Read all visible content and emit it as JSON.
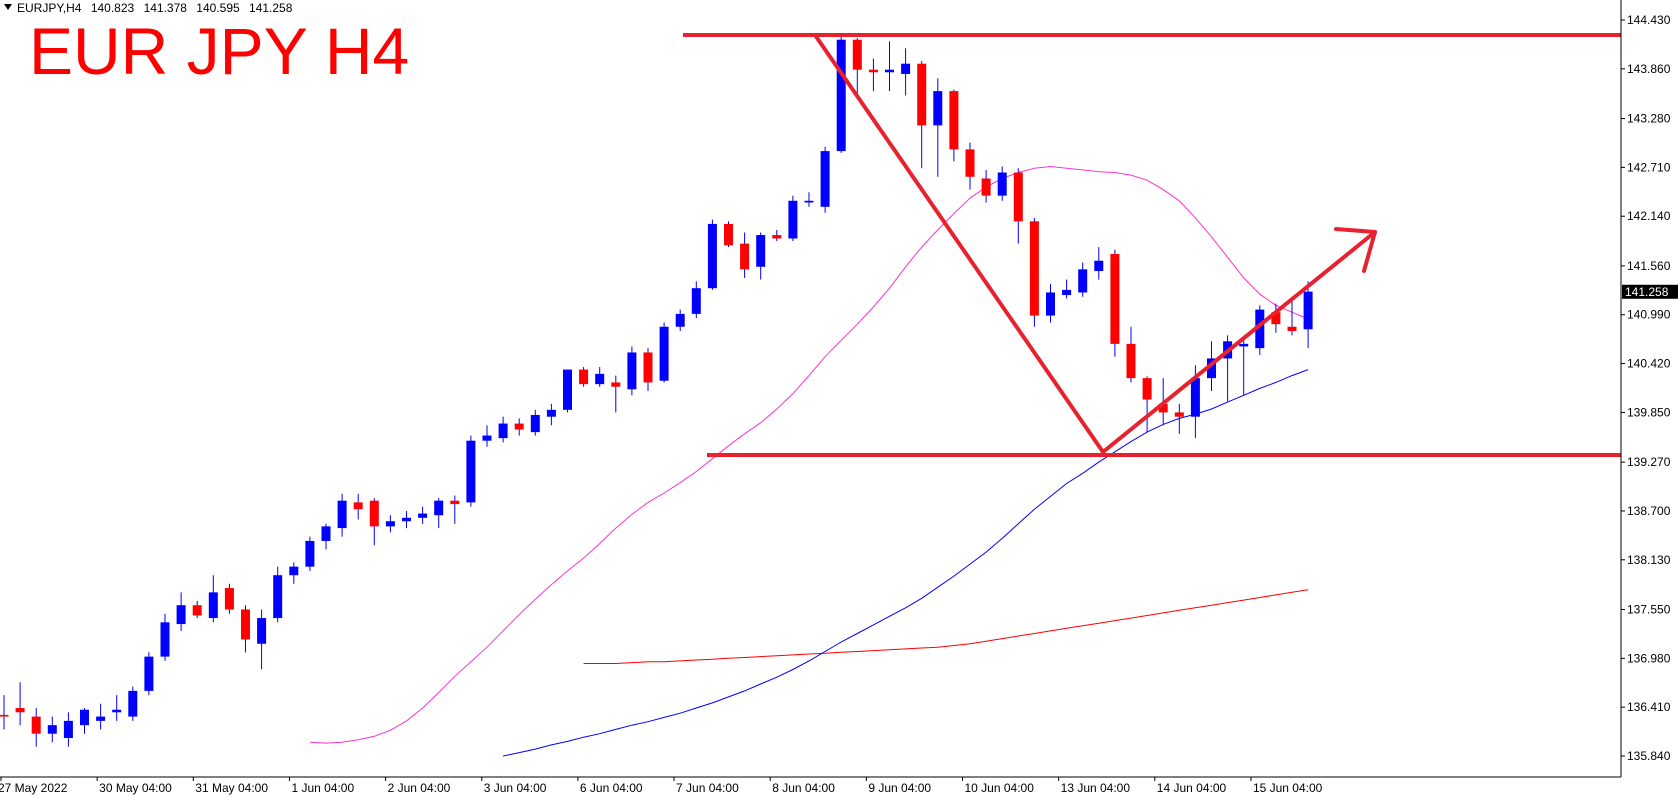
{
  "header": {
    "symbol": "EURJPY,H4",
    "open": "140.823",
    "high": "141.378",
    "low": "140.595",
    "close": "141.258",
    "annotation_title": "EUR JPY H4"
  },
  "colors": {
    "background": "#ffffff",
    "bull_candle": "#0000ff",
    "bear_candle": "#ff0000",
    "wick": "#0000ff",
    "ma_pink": "#ff33cc",
    "ma_blue": "#0000ff",
    "ma_red": "#ff0000",
    "annotation": "#e8212f",
    "axis": "#000000",
    "price_badge": "#000000"
  },
  "chart_data": {
    "type": "candlestick",
    "y_ticks": [
      "144.430",
      "143.860",
      "143.280",
      "142.710",
      "142.140",
      "141.560",
      "140.990",
      "140.420",
      "139.850",
      "139.270",
      "138.700",
      "138.130",
      "137.550",
      "136.980",
      "136.410",
      "135.840"
    ],
    "ylim": [
      135.78,
      144.6
    ],
    "x_ticks": [
      "27 May 2022",
      "30 May 04:00",
      "31 May 04:00",
      "1 Jun 04:00",
      "2 Jun 04:00",
      "3 Jun 04:00",
      "6 Jun 04:00",
      "7 Jun 04:00",
      "8 Jun 04:00",
      "9 Jun 04:00",
      "10 Jun 04:00",
      "13 Jun 04:00",
      "14 Jun 04:00",
      "15 Jun 04:00"
    ],
    "current_price": "141.258",
    "candles": [
      {
        "o": 136.32,
        "h": 136.55,
        "l": 136.15,
        "c": 136.3
      },
      {
        "o": 136.4,
        "h": 136.7,
        "l": 136.2,
        "c": 136.35
      },
      {
        "o": 136.3,
        "h": 136.4,
        "l": 135.95,
        "c": 136.1
      },
      {
        "o": 136.1,
        "h": 136.3,
        "l": 136.0,
        "c": 136.2
      },
      {
        "o": 136.05,
        "h": 136.35,
        "l": 135.95,
        "c": 136.25
      },
      {
        "o": 136.2,
        "h": 136.4,
        "l": 136.1,
        "c": 136.38
      },
      {
        "o": 136.25,
        "h": 136.45,
        "l": 136.15,
        "c": 136.3
      },
      {
        "o": 136.35,
        "h": 136.55,
        "l": 136.25,
        "c": 136.38
      },
      {
        "o": 136.3,
        "h": 136.65,
        "l": 136.25,
        "c": 136.6
      },
      {
        "o": 136.6,
        "h": 137.05,
        "l": 136.55,
        "c": 137.0
      },
      {
        "o": 137.0,
        "h": 137.5,
        "l": 136.95,
        "c": 137.4
      },
      {
        "o": 137.38,
        "h": 137.75,
        "l": 137.3,
        "c": 137.6
      },
      {
        "o": 137.6,
        "h": 137.65,
        "l": 137.45,
        "c": 137.48
      },
      {
        "o": 137.45,
        "h": 137.95,
        "l": 137.4,
        "c": 137.75
      },
      {
        "o": 137.8,
        "h": 137.85,
        "l": 137.5,
        "c": 137.55
      },
      {
        "o": 137.55,
        "h": 137.6,
        "l": 137.05,
        "c": 137.2
      },
      {
        "o": 137.15,
        "h": 137.55,
        "l": 136.85,
        "c": 137.45
      },
      {
        "o": 137.45,
        "h": 138.05,
        "l": 137.4,
        "c": 137.95
      },
      {
        "o": 137.95,
        "h": 138.1,
        "l": 137.85,
        "c": 138.05
      },
      {
        "o": 138.05,
        "h": 138.4,
        "l": 138.0,
        "c": 138.35
      },
      {
        "o": 138.35,
        "h": 138.55,
        "l": 138.25,
        "c": 138.52
      },
      {
        "o": 138.5,
        "h": 138.9,
        "l": 138.4,
        "c": 138.82
      },
      {
        "o": 138.8,
        "h": 138.9,
        "l": 138.6,
        "c": 138.72
      },
      {
        "o": 138.82,
        "h": 138.85,
        "l": 138.3,
        "c": 138.52
      },
      {
        "o": 138.52,
        "h": 138.65,
        "l": 138.45,
        "c": 138.58
      },
      {
        "o": 138.58,
        "h": 138.7,
        "l": 138.5,
        "c": 138.62
      },
      {
        "o": 138.62,
        "h": 138.75,
        "l": 138.55,
        "c": 138.67
      },
      {
        "o": 138.65,
        "h": 138.85,
        "l": 138.5,
        "c": 138.82
      },
      {
        "o": 138.82,
        "h": 138.88,
        "l": 138.55,
        "c": 138.78
      },
      {
        "o": 138.8,
        "h": 139.58,
        "l": 138.75,
        "c": 139.52
      },
      {
        "o": 139.52,
        "h": 139.7,
        "l": 139.45,
        "c": 139.58
      },
      {
        "o": 139.55,
        "h": 139.8,
        "l": 139.5,
        "c": 139.72
      },
      {
        "o": 139.72,
        "h": 139.78,
        "l": 139.58,
        "c": 139.65
      },
      {
        "o": 139.62,
        "h": 139.88,
        "l": 139.58,
        "c": 139.82
      },
      {
        "o": 139.8,
        "h": 139.95,
        "l": 139.7,
        "c": 139.88
      },
      {
        "o": 139.88,
        "h": 140.35,
        "l": 139.85,
        "c": 140.35
      },
      {
        "o": 140.35,
        "h": 140.38,
        "l": 140.15,
        "c": 140.18
      },
      {
        "o": 140.18,
        "h": 140.38,
        "l": 140.15,
        "c": 140.3
      },
      {
        "o": 140.2,
        "h": 140.28,
        "l": 139.85,
        "c": 140.15
      },
      {
        "o": 140.12,
        "h": 140.62,
        "l": 140.05,
        "c": 140.55
      },
      {
        "o": 140.55,
        "h": 140.6,
        "l": 140.1,
        "c": 140.2
      },
      {
        "o": 140.22,
        "h": 140.9,
        "l": 140.2,
        "c": 140.85
      },
      {
        "o": 140.85,
        "h": 141.05,
        "l": 140.8,
        "c": 141.0
      },
      {
        "o": 141.0,
        "h": 141.38,
        "l": 140.95,
        "c": 141.3
      },
      {
        "o": 141.3,
        "h": 142.1,
        "l": 141.28,
        "c": 142.05
      },
      {
        "o": 142.05,
        "h": 142.08,
        "l": 141.78,
        "c": 141.8
      },
      {
        "o": 141.82,
        "h": 141.95,
        "l": 141.42,
        "c": 141.52
      },
      {
        "o": 141.55,
        "h": 141.95,
        "l": 141.4,
        "c": 141.92
      },
      {
        "o": 141.92,
        "h": 141.98,
        "l": 141.85,
        "c": 141.88
      },
      {
        "o": 141.88,
        "h": 142.38,
        "l": 141.85,
        "c": 142.32
      },
      {
        "o": 142.3,
        "h": 142.42,
        "l": 142.25,
        "c": 142.32
      },
      {
        "o": 142.25,
        "h": 142.95,
        "l": 142.18,
        "c": 142.9
      },
      {
        "o": 142.9,
        "h": 144.25,
        "l": 142.88,
        "c": 144.2
      },
      {
        "o": 144.2,
        "h": 144.22,
        "l": 143.55,
        "c": 143.85
      },
      {
        "o": 143.85,
        "h": 143.98,
        "l": 143.6,
        "c": 143.82
      },
      {
        "o": 143.82,
        "h": 144.18,
        "l": 143.6,
        "c": 143.85
      },
      {
        "o": 143.8,
        "h": 144.1,
        "l": 143.55,
        "c": 143.92
      },
      {
        "o": 143.92,
        "h": 143.95,
        "l": 142.7,
        "c": 143.2
      },
      {
        "o": 143.2,
        "h": 143.75,
        "l": 142.6,
        "c": 143.6
      },
      {
        "o": 143.6,
        "h": 143.62,
        "l": 142.78,
        "c": 142.92
      },
      {
        "o": 142.92,
        "h": 143.0,
        "l": 142.45,
        "c": 142.6
      },
      {
        "o": 142.58,
        "h": 142.68,
        "l": 142.3,
        "c": 142.38
      },
      {
        "o": 142.38,
        "h": 142.72,
        "l": 142.32,
        "c": 142.65
      },
      {
        "o": 142.65,
        "h": 142.7,
        "l": 141.82,
        "c": 142.08
      },
      {
        "o": 142.08,
        "h": 142.12,
        "l": 140.85,
        "c": 140.98
      },
      {
        "o": 140.98,
        "h": 141.35,
        "l": 140.9,
        "c": 141.25
      },
      {
        "o": 141.22,
        "h": 141.4,
        "l": 141.18,
        "c": 141.28
      },
      {
        "o": 141.25,
        "h": 141.6,
        "l": 141.2,
        "c": 141.52
      },
      {
        "o": 141.5,
        "h": 141.78,
        "l": 141.4,
        "c": 141.62
      },
      {
        "o": 141.7,
        "h": 141.75,
        "l": 140.5,
        "c": 140.65
      },
      {
        "o": 140.65,
        "h": 140.85,
        "l": 140.2,
        "c": 140.25
      },
      {
        "o": 140.25,
        "h": 140.27,
        "l": 139.62,
        "c": 140.0
      },
      {
        "o": 139.95,
        "h": 140.25,
        "l": 139.7,
        "c": 139.85
      },
      {
        "o": 139.85,
        "h": 139.95,
        "l": 139.6,
        "c": 139.8
      },
      {
        "o": 139.8,
        "h": 140.4,
        "l": 139.55,
        "c": 140.25
      },
      {
        "o": 140.25,
        "h": 140.68,
        "l": 140.1,
        "c": 140.48
      },
      {
        "o": 140.48,
        "h": 140.75,
        "l": 139.98,
        "c": 140.68
      },
      {
        "o": 140.62,
        "h": 140.7,
        "l": 140.05,
        "c": 140.65
      },
      {
        "o": 140.6,
        "h": 141.1,
        "l": 140.52,
        "c": 141.05
      },
      {
        "o": 141.02,
        "h": 141.12,
        "l": 140.78,
        "c": 140.88
      },
      {
        "o": 140.85,
        "h": 141.18,
        "l": 140.75,
        "c": 140.8
      },
      {
        "o": 140.82,
        "h": 141.38,
        "l": 140.6,
        "c": 141.26
      }
    ],
    "ma_pink": [
      136.0,
      135.99,
      136.0,
      136.03,
      136.07,
      136.14,
      136.25,
      136.4,
      136.58,
      136.77,
      136.94,
      137.11,
      137.3,
      137.49,
      137.67,
      137.84,
      138.0,
      138.15,
      138.32,
      138.5,
      138.66,
      138.8,
      138.91,
      139.03,
      139.16,
      139.31,
      139.46,
      139.6,
      139.73,
      139.89,
      140.07,
      140.28,
      140.5,
      140.69,
      140.88,
      141.08,
      141.3,
      141.55,
      141.78,
      141.98,
      142.17,
      142.35,
      142.48,
      142.58,
      142.65,
      142.7,
      142.72,
      142.7,
      142.68,
      142.66,
      142.65,
      142.62,
      142.56,
      142.45,
      142.32,
      142.12,
      141.9,
      141.66,
      141.42,
      141.23,
      141.1,
      141.02,
      140.94
    ],
    "ma_blue": [
      135.84,
      135.88,
      135.92,
      135.97,
      136.01,
      136.06,
      136.1,
      136.15,
      136.2,
      136.24,
      136.29,
      136.34,
      136.4,
      136.46,
      136.53,
      136.6,
      136.68,
      136.76,
      136.85,
      136.95,
      137.06,
      137.17,
      137.27,
      137.37,
      137.47,
      137.57,
      137.68,
      137.81,
      137.94,
      138.08,
      138.22,
      138.38,
      138.55,
      138.72,
      138.87,
      139.02,
      139.14,
      139.27,
      139.39,
      139.51,
      139.62,
      139.71,
      139.78,
      139.83,
      139.89,
      139.97,
      140.05,
      140.13,
      140.2,
      140.28,
      140.35
    ],
    "ma_red": [
      136.92,
      136.92,
      136.92,
      136.93,
      136.94,
      136.94,
      136.95,
      136.96,
      136.97,
      136.98,
      136.99,
      137.0,
      137.01,
      137.02,
      137.03,
      137.04,
      137.05,
      137.06,
      137.07,
      137.08,
      137.09,
      137.1,
      137.11,
      137.13,
      137.15,
      137.18,
      137.21,
      137.24,
      137.27,
      137.3,
      137.33,
      137.36,
      137.39,
      137.42,
      137.45,
      137.48,
      137.51,
      137.54,
      137.57,
      137.6,
      137.63,
      137.66,
      137.69,
      137.72,
      137.75,
      137.78
    ]
  }
}
